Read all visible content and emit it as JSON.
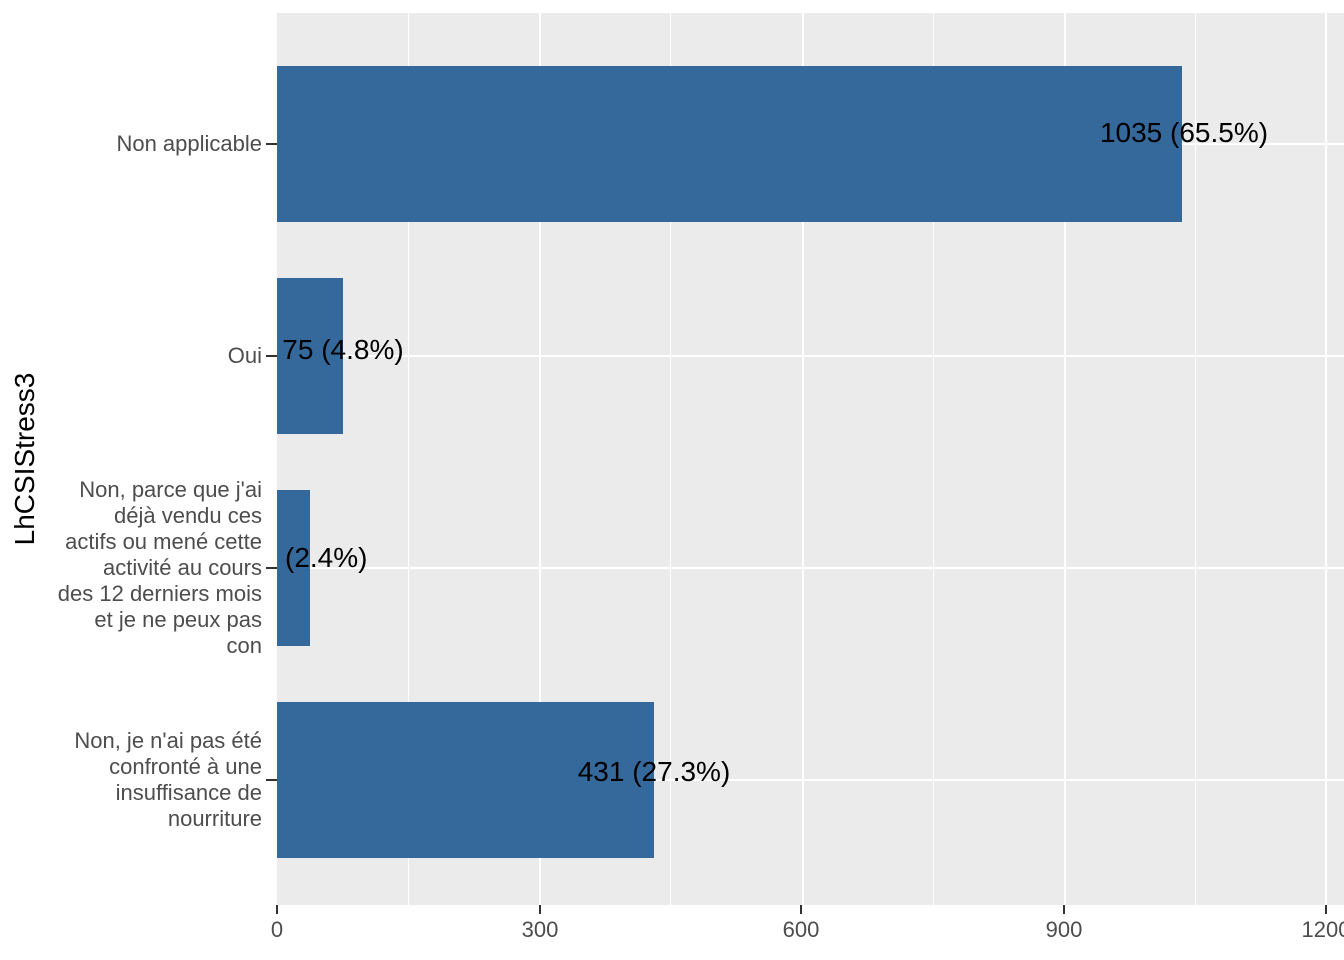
{
  "chart_data": {
    "type": "bar",
    "orientation": "horizontal",
    "title": "",
    "xlabel": "",
    "ylabel": "LhCSIStress3",
    "categories": [
      "Non applicable",
      "Oui",
      "Non, parce que j'ai déjà vendu ces actifs ou mené cette activité au cours des 12 derniers mois et je ne peux pas con",
      "Non, je n'ai pas été confronté à une insuffisance de nourriture"
    ],
    "values": [
      1035,
      75,
      38,
      431
    ],
    "percentages": [
      65.5,
      4.8,
      2.4,
      27.3
    ],
    "bar_labels": [
      "1035 (65.5%)",
      "75 (4.8%)",
      "(2.4%)",
      "431 (27.3%)"
    ],
    "x_major_ticks": [
      0,
      300,
      600,
      900,
      1200
    ],
    "x_minor_gridlines": [
      150,
      450,
      750,
      1050
    ],
    "xlim": [
      0,
      1220
    ],
    "grid": "white major/minor gridlines on gray panel",
    "legend_position": "none",
    "bar_color": "#35689B",
    "panel_background": "#EBEBEB",
    "tick_label_color": "#4D4D4D"
  },
  "axis_labels": {
    "cat1_lines": [
      "Non applicable"
    ],
    "cat2_lines": [
      "Oui"
    ],
    "cat3_lines": [
      "Non, parce que j'ai",
      "déjà vendu ces",
      "actifs ou mené cette",
      "activité au cours",
      "des 12 derniers mois",
      "et je ne peux pas",
      "con"
    ],
    "cat4_lines": [
      "Non, je n'ai pas été",
      "confronté à une",
      "insuffisance de",
      "nourriture"
    ]
  }
}
